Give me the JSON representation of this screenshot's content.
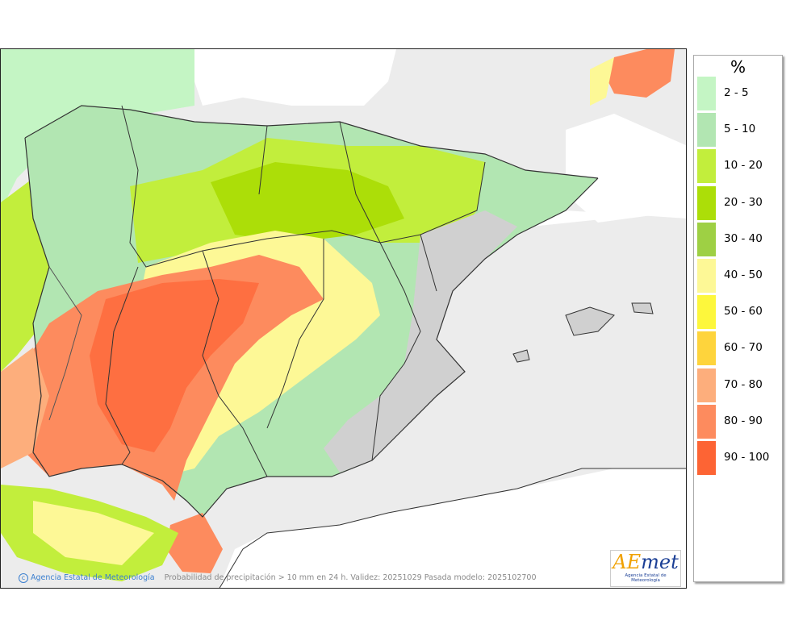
{
  "legend": {
    "title": "%",
    "items": [
      {
        "label": "2 - 5",
        "color": "#c4f5c4"
      },
      {
        "label": "5 - 10",
        "color": "#b2e6b2"
      },
      {
        "label": "10 - 20",
        "color": "#c2ee3c"
      },
      {
        "label": "20 - 30",
        "color": "#acde08"
      },
      {
        "label": "30 - 40",
        "color": "#9ed044"
      },
      {
        "label": "40 - 50",
        "color": "#fdf896"
      },
      {
        "label": "50 - 60",
        "color": "#fdf73c"
      },
      {
        "label": "60 - 70",
        "color": "#fed43c"
      },
      {
        "label": "70 - 80",
        "color": "#fdae7c"
      },
      {
        "label": "80 - 90",
        "color": "#fd8b5e"
      },
      {
        "label": "90 - 100",
        "color": "#fd6434"
      }
    ]
  },
  "footer": {
    "agency": "Agencia Estatal de Meteorología",
    "description": "Probabilidad de precipitación > 10 mm en 24 h. Validez: 20251029 Pasada modelo: 2025102700"
  },
  "logo": {
    "word_ae": "AE",
    "word_rest": "met",
    "subtitle": "Agencia Estatal de Meteorología"
  },
  "map": {
    "land_color": "#d9d9d9",
    "sea_color": "#ececec",
    "white_color": "#ffffff"
  }
}
